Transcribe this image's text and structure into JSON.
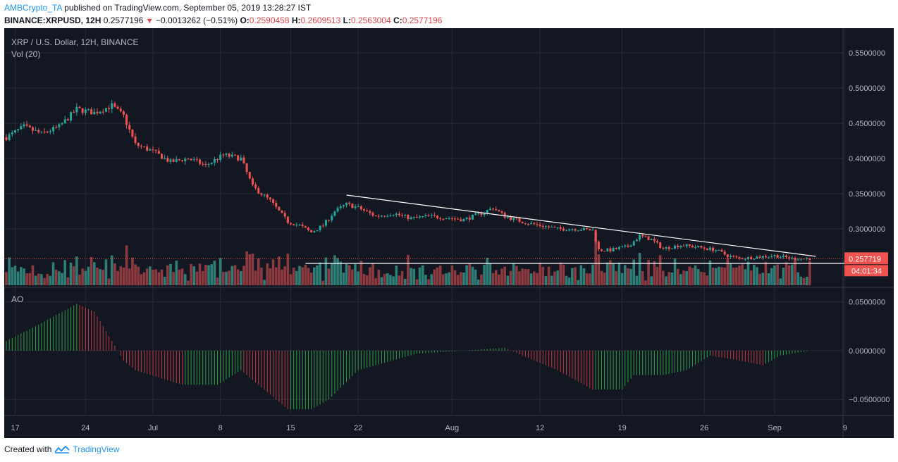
{
  "header": {
    "author": "AMBCrypto_TA",
    "published_text": "published on TradingView.com, September 05, 2019 13:28:27 IST",
    "symbol": "BINANCE:XRPUSD, 12H",
    "last": "0.2577196",
    "change": "−0.0013262 (−0.51%)",
    "o_label": "O:",
    "o_val": "0.2590458",
    "h_label": "H:",
    "h_val": "0.2609513",
    "l_label": "L:",
    "l_val": "0.2563004",
    "c_label": "C:",
    "c_val": "0.2577196",
    "down_arrow": "▼"
  },
  "footer": {
    "created_with": "Created with",
    "brand": "TradingView"
  },
  "colors": {
    "background": "#131722",
    "up": "#26a69a",
    "down": "#ef5350",
    "vol_up": "#2e7d76",
    "vol_down": "#8c3a3f",
    "ao_up": "#2ea043",
    "ao_down": "#c23a3f",
    "grid": "#252a36",
    "axis_text": "#b2b5be",
    "trendline": "#ffffff",
    "price_label_bg": "#ef5350"
  },
  "chart_data": {
    "type": "candlestick",
    "title": "XRP / U.S. Dollar, 12H, BINANCE",
    "volume_label": "Vol (20)",
    "oscillator_label": "AO",
    "x_labels": [
      "17",
      "24",
      "Jul",
      "8",
      "15",
      "22",
      "Aug",
      "12",
      "19",
      "26",
      "Sep",
      "9"
    ],
    "y_price_ticks": [
      "0.5500000",
      "0.5000000",
      "0.4500000",
      "0.4000000",
      "0.3500000",
      "0.3000000"
    ],
    "y_price_values": [
      0.55,
      0.5,
      0.45,
      0.4,
      0.35,
      0.3
    ],
    "price_ylim": [
      0.22,
      0.575
    ],
    "y_ao_ticks": [
      "0.0500000",
      "0.0000000",
      "−0.0500000"
    ],
    "y_ao_values": [
      0.05,
      0.0,
      -0.05
    ],
    "ao_ylim": [
      -0.065,
      0.062
    ],
    "current_price_label": "0.257719",
    "countdown_label": "04:01:34",
    "current_price": 0.2577,
    "grid": true,
    "close_anchors": [
      [
        0,
        0.43
      ],
      [
        6,
        0.445
      ],
      [
        12,
        0.435
      ],
      [
        18,
        0.445
      ],
      [
        24,
        0.47
      ],
      [
        30,
        0.465
      ],
      [
        36,
        0.475
      ],
      [
        40,
        0.46
      ],
      [
        44,
        0.42
      ],
      [
        50,
        0.41
      ],
      [
        56,
        0.395
      ],
      [
        62,
        0.4
      ],
      [
        68,
        0.39
      ],
      [
        74,
        0.405
      ],
      [
        80,
        0.4
      ],
      [
        84,
        0.36
      ],
      [
        90,
        0.34
      ],
      [
        96,
        0.31
      ],
      [
        100,
        0.305
      ],
      [
        104,
        0.295
      ],
      [
        108,
        0.305
      ],
      [
        112,
        0.325
      ],
      [
        116,
        0.335
      ],
      [
        120,
        0.33
      ],
      [
        126,
        0.318
      ],
      [
        132,
        0.322
      ],
      [
        138,
        0.315
      ],
      [
        144,
        0.318
      ],
      [
        150,
        0.316
      ],
      [
        156,
        0.313
      ],
      [
        162,
        0.322
      ],
      [
        166,
        0.33
      ],
      [
        170,
        0.318
      ],
      [
        176,
        0.31
      ],
      [
        182,
        0.305
      ],
      [
        188,
        0.3
      ],
      [
        194,
        0.3
      ],
      [
        200,
        0.298
      ],
      [
        202,
        0.27
      ],
      [
        206,
        0.27
      ],
      [
        212,
        0.275
      ],
      [
        216,
        0.29
      ],
      [
        220,
        0.285
      ],
      [
        224,
        0.272
      ],
      [
        230,
        0.277
      ],
      [
        236,
        0.274
      ],
      [
        242,
        0.27
      ],
      [
        246,
        0.262
      ],
      [
        250,
        0.258
      ],
      [
        256,
        0.26
      ],
      [
        262,
        0.262
      ],
      [
        268,
        0.258
      ],
      [
        273,
        0.2577
      ]
    ],
    "ao_anchors": [
      [
        0,
        0.01
      ],
      [
        10,
        0.025
      ],
      [
        24,
        0.048
      ],
      [
        30,
        0.04
      ],
      [
        40,
        -0.01
      ],
      [
        44,
        -0.02
      ],
      [
        60,
        -0.035
      ],
      [
        72,
        -0.035
      ],
      [
        80,
        -0.02
      ],
      [
        84,
        -0.03
      ],
      [
        96,
        -0.06
      ],
      [
        104,
        -0.06
      ],
      [
        110,
        -0.05
      ],
      [
        120,
        -0.02
      ],
      [
        140,
        -0.003
      ],
      [
        156,
        0.0
      ],
      [
        170,
        0.003
      ],
      [
        176,
        -0.005
      ],
      [
        188,
        -0.02
      ],
      [
        200,
        -0.04
      ],
      [
        210,
        -0.04
      ],
      [
        214,
        -0.025
      ],
      [
        224,
        -0.025
      ],
      [
        232,
        -0.02
      ],
      [
        240,
        -0.005
      ],
      [
        250,
        -0.01
      ],
      [
        258,
        -0.015
      ],
      [
        264,
        -0.005
      ],
      [
        274,
        0.0
      ]
    ],
    "trendline_upper": [
      [
        116,
        0.348
      ],
      [
        276,
        0.261
      ]
    ],
    "support_line": [
      [
        102,
        0.251
      ],
      [
        286,
        0.251
      ]
    ]
  }
}
